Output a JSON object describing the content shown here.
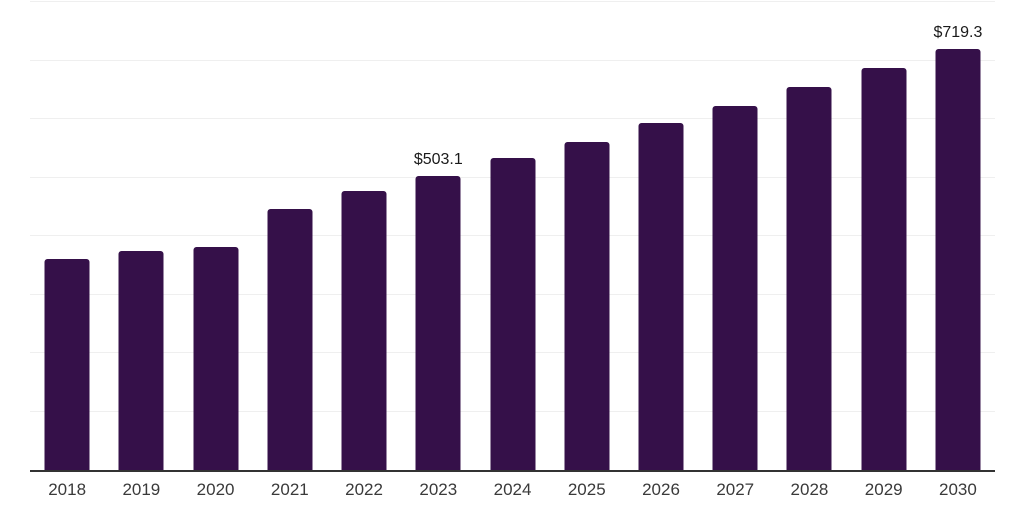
{
  "chart_data": {
    "type": "bar",
    "categories": [
      "2018",
      "2019",
      "2020",
      "2021",
      "2022",
      "2023",
      "2024",
      "2025",
      "2026",
      "2027",
      "2028",
      "2029",
      "2030"
    ],
    "values": [
      360.1,
      374.8,
      380.9,
      445.6,
      476.3,
      503.1,
      532.9,
      561.1,
      592.7,
      622.9,
      655.2,
      686.9,
      719.3
    ],
    "bar_labels": [
      "",
      "",
      "",
      "",
      "",
      "$503.1",
      "",
      "",
      "",
      "",
      "",
      "",
      "$719.3"
    ],
    "title": "",
    "xlabel": "",
    "ylabel": "",
    "ylim": [
      0,
      800
    ],
    "gridline_step": 100,
    "grid": "horizontal",
    "legend_position": "none",
    "y_tick_labels_visible": false,
    "colors": {
      "bar": "#351049",
      "gridline": "#efefef",
      "axis": "#333333",
      "tick_label": "#3a3a3a",
      "data_label": "#1a1a1a"
    }
  }
}
